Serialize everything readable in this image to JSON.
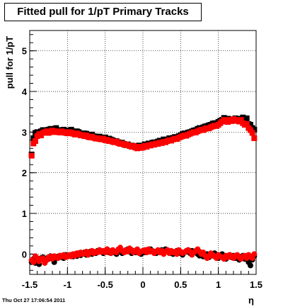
{
  "title": "Fitted pull for 1/pT  Primary Tracks",
  "footer": "Thu Oct 27 17:06:54 2011",
  "colors": {
    "black_series": "#000000",
    "red_series": "#ff0000",
    "grid": "#000000",
    "frame": "#000000"
  },
  "chart_data": {
    "type": "scatter",
    "title": "Fitted pull for 1/pT  Primary Tracks",
    "xlabel": "η",
    "ylabel": "pull for 1/pT",
    "xlim": [
      -1.5,
      1.5
    ],
    "ylim": [
      -0.5,
      5.5
    ],
    "x_ticks": [
      "-1.5",
      "-1",
      "-0.5",
      "0",
      "0.5",
      "1",
      "1.5"
    ],
    "y_ticks": [
      "0",
      "1",
      "2",
      "3",
      "4",
      "5"
    ],
    "grid": true,
    "series": [
      {
        "color": "#000000",
        "x": [
          -1.475,
          -1.45,
          -1.425,
          -1.4,
          -1.375,
          -1.35,
          -1.325,
          -1.3,
          -1.275,
          -1.25,
          -1.225,
          -1.2,
          -1.175,
          -1.15,
          -1.125,
          -1.1,
          -1.075,
          -1.05,
          -1.025,
          -1.0,
          -0.975,
          -0.95,
          -0.925,
          -0.9,
          -0.875,
          -0.85,
          -0.825,
          -0.8,
          -0.775,
          -0.75,
          -0.725,
          -0.7,
          -0.675,
          -0.65,
          -0.625,
          -0.6,
          -0.575,
          -0.55,
          -0.525,
          -0.5,
          -0.475,
          -0.45,
          -0.425,
          -0.4,
          -0.375,
          -0.35,
          -0.325,
          -0.3,
          -0.275,
          -0.25,
          -0.225,
          -0.2,
          -0.175,
          -0.15,
          -0.125,
          -0.1,
          -0.075,
          -0.05,
          -0.025,
          0.0,
          0.025,
          0.05,
          0.075,
          0.1,
          0.125,
          0.15,
          0.175,
          0.2,
          0.225,
          0.25,
          0.275,
          0.3,
          0.325,
          0.35,
          0.375,
          0.4,
          0.425,
          0.45,
          0.475,
          0.5,
          0.525,
          0.55,
          0.575,
          0.6,
          0.625,
          0.65,
          0.675,
          0.7,
          0.725,
          0.75,
          0.775,
          0.8,
          0.825,
          0.85,
          0.875,
          0.9,
          0.925,
          0.95,
          0.975,
          1.0,
          1.025,
          1.05,
          1.075,
          1.1,
          1.125,
          1.15,
          1.175,
          1.2,
          1.225,
          1.25,
          1.275,
          1.3,
          1.325,
          1.35,
          1.375,
          1.4,
          1.425,
          1.45,
          1.475
        ],
        "mean": [
          2.45,
          2.85,
          2.98,
          3.0,
          2.98,
          3.02,
          3.05,
          3.05,
          3.03,
          3.06,
          3.08,
          3.04,
          3.08,
          3.1,
          3.05,
          3.02,
          3.04,
          3.06,
          3.03,
          3.01,
          3.04,
          3.06,
          3.02,
          3.0,
          3.02,
          3.0,
          2.97,
          2.95,
          2.97,
          2.96,
          2.93,
          2.92,
          2.94,
          2.9,
          2.89,
          2.88,
          2.89,
          2.86,
          2.85,
          2.87,
          2.84,
          2.84,
          2.82,
          2.8,
          2.77,
          2.78,
          2.75,
          2.72,
          2.74,
          2.71,
          2.68,
          2.7,
          2.66,
          2.67,
          2.65,
          2.66,
          2.63,
          2.67,
          2.64,
          2.64,
          2.7,
          2.68,
          2.72,
          2.71,
          2.74,
          2.75,
          2.73,
          2.77,
          2.79,
          2.78,
          2.82,
          2.8,
          2.82,
          2.85,
          2.82,
          2.86,
          2.88,
          2.87,
          2.9,
          2.92,
          2.95,
          2.97,
          2.94,
          2.99,
          3.0,
          3.02,
          3.04,
          3.05,
          3.08,
          3.1,
          3.1,
          3.12,
          3.14,
          3.15,
          3.17,
          3.18,
          3.21,
          3.22,
          3.22,
          3.25,
          3.28,
          3.3,
          3.35,
          3.32,
          3.33,
          3.3,
          3.32,
          3.31,
          3.34,
          3.28,
          3.3,
          3.33,
          3.36,
          3.3,
          3.34,
          3.2,
          3.18,
          3.1,
          3.06
        ],
        "low": [
          -0.2,
          -0.12,
          -0.22,
          -0.15,
          -0.25,
          -0.1,
          -0.08,
          -0.18,
          -0.1,
          -0.12,
          -0.05,
          -0.08,
          -0.2,
          -0.1,
          -0.06,
          -0.04,
          -0.08,
          -0.1,
          -0.02,
          -0.06,
          -0.04,
          -0.02,
          -0.06,
          0.0,
          -0.05,
          0.02,
          -0.03,
          0.0,
          0.04,
          -0.02,
          0.02,
          0.06,
          0.0,
          0.04,
          0.02,
          0.08,
          0.1,
          0.06,
          0.02,
          0.08,
          0.12,
          0.04,
          0.02,
          0.06,
          0.04,
          0.0,
          0.06,
          0.08,
          0.02,
          0.04,
          0.1,
          0.12,
          0.06,
          0.02,
          0.08,
          0.04,
          0.1,
          0.06,
          0.0,
          0.08,
          0.04,
          0.1,
          0.06,
          0.12,
          0.08,
          0.06,
          0.02,
          0.08,
          0.04,
          0.1,
          0.06,
          0.12,
          0.08,
          0.06,
          0.02,
          0.0,
          0.04,
          0.08,
          0.06,
          0.02,
          -0.02,
          0.04,
          0.06,
          0.1,
          0.02,
          0.08,
          0.04,
          0.06,
          0.0,
          -0.04,
          0.02,
          -0.06,
          -0.04,
          0.0,
          -0.08,
          -0.04,
          -0.02,
          0.02,
          -0.06,
          -0.1,
          -0.04,
          0.0,
          -0.06,
          -0.12,
          -0.06,
          -0.02,
          -0.08,
          -0.04,
          -0.1,
          -0.06,
          -0.14,
          -0.08,
          -0.04,
          -0.12,
          -0.06,
          -0.2,
          -0.28,
          -0.14,
          -0.05
        ]
      },
      {
        "color": "#ff0000",
        "x": [
          -1.475,
          -1.45,
          -1.425,
          -1.4,
          -1.375,
          -1.35,
          -1.325,
          -1.3,
          -1.275,
          -1.25,
          -1.225,
          -1.2,
          -1.175,
          -1.15,
          -1.125,
          -1.1,
          -1.075,
          -1.05,
          -1.025,
          -1.0,
          -0.975,
          -0.95,
          -0.925,
          -0.9,
          -0.875,
          -0.85,
          -0.825,
          -0.8,
          -0.775,
          -0.75,
          -0.725,
          -0.7,
          -0.675,
          -0.65,
          -0.625,
          -0.6,
          -0.575,
          -0.55,
          -0.525,
          -0.5,
          -0.475,
          -0.45,
          -0.425,
          -0.4,
          -0.375,
          -0.35,
          -0.325,
          -0.3,
          -0.275,
          -0.25,
          -0.225,
          -0.2,
          -0.175,
          -0.15,
          -0.125,
          -0.1,
          -0.075,
          -0.05,
          -0.025,
          0.0,
          0.025,
          0.05,
          0.075,
          0.1,
          0.125,
          0.15,
          0.175,
          0.2,
          0.225,
          0.25,
          0.275,
          0.3,
          0.325,
          0.35,
          0.375,
          0.4,
          0.425,
          0.45,
          0.475,
          0.5,
          0.525,
          0.55,
          0.575,
          0.6,
          0.625,
          0.65,
          0.675,
          0.7,
          0.725,
          0.75,
          0.775,
          0.8,
          0.825,
          0.85,
          0.875,
          0.9,
          0.925,
          0.95,
          0.975,
          1.0,
          1.025,
          1.05,
          1.075,
          1.1,
          1.125,
          1.15,
          1.175,
          1.2,
          1.225,
          1.25,
          1.275,
          1.3,
          1.325,
          1.35,
          1.375,
          1.4,
          1.425,
          1.45,
          1.475
        ],
        "mean": [
          2.42,
          2.72,
          2.78,
          2.9,
          2.95,
          2.92,
          2.98,
          3.0,
          3.02,
          2.98,
          3.0,
          3.04,
          3.0,
          3.02,
          3.0,
          2.99,
          3.02,
          3.0,
          2.98,
          2.97,
          3.0,
          2.99,
          2.96,
          2.94,
          2.97,
          2.95,
          2.92,
          2.93,
          2.9,
          2.92,
          2.88,
          2.87,
          2.89,
          2.86,
          2.84,
          2.85,
          2.83,
          2.82,
          2.84,
          2.8,
          2.81,
          2.78,
          2.79,
          2.76,
          2.75,
          2.77,
          2.73,
          2.71,
          2.72,
          2.69,
          2.7,
          2.68,
          2.66,
          2.64,
          2.66,
          2.62,
          2.6,
          2.64,
          2.61,
          2.62,
          2.66,
          2.64,
          2.68,
          2.67,
          2.7,
          2.69,
          2.72,
          2.71,
          2.74,
          2.73,
          2.76,
          2.75,
          2.78,
          2.8,
          2.79,
          2.82,
          2.84,
          2.83,
          2.86,
          2.88,
          2.9,
          2.92,
          2.91,
          2.94,
          2.96,
          2.98,
          3.0,
          2.99,
          3.02,
          3.04,
          3.06,
          3.05,
          3.08,
          3.1,
          3.09,
          3.12,
          3.14,
          3.16,
          3.15,
          3.18,
          3.22,
          3.26,
          3.3,
          3.28,
          3.25,
          3.3,
          3.27,
          3.32,
          3.3,
          3.28,
          3.26,
          3.3,
          3.22,
          3.18,
          3.2,
          3.1,
          3.05,
          2.98,
          2.85
        ],
        "low": [
          -0.15,
          -0.2,
          -0.05,
          -0.1,
          -0.18,
          -0.12,
          -0.1,
          -0.22,
          -0.15,
          -0.08,
          -0.06,
          -0.12,
          -0.05,
          -0.08,
          -0.1,
          -0.04,
          -0.06,
          -0.02,
          -0.08,
          -0.05,
          -0.02,
          -0.06,
          0.0,
          -0.04,
          0.02,
          -0.02,
          0.04,
          0.0,
          0.02,
          0.06,
          -0.02,
          0.04,
          0.08,
          0.02,
          0.06,
          0.04,
          0.1,
          0.05,
          0.08,
          0.04,
          0.12,
          0.08,
          0.02,
          0.1,
          0.06,
          0.04,
          0.12,
          0.16,
          0.08,
          0.04,
          0.1,
          0.06,
          0.14,
          0.1,
          0.04,
          0.08,
          0.12,
          0.02,
          0.06,
          0.08,
          0.1,
          0.04,
          0.12,
          0.06,
          0.08,
          0.02,
          0.06,
          0.1,
          0.04,
          0.08,
          0.0,
          0.06,
          0.1,
          0.02,
          0.08,
          0.04,
          0.06,
          0.0,
          0.1,
          0.06,
          0.02,
          0.04,
          0.08,
          0.1,
          0.06,
          -0.02,
          0.04,
          0.08,
          0.12,
          0.06,
          0.0,
          0.04,
          -0.04,
          -0.1,
          -0.06,
          0.02,
          -0.02,
          -0.06,
          -0.1,
          -0.02,
          -0.06,
          -0.08,
          -0.12,
          -0.04,
          -0.08,
          -0.02,
          -0.06,
          -0.1,
          -0.04,
          -0.02,
          -0.08,
          -0.12,
          -0.06,
          -0.04,
          -0.1,
          -0.02,
          -0.06,
          -0.1,
          0.0
        ]
      }
    ]
  }
}
